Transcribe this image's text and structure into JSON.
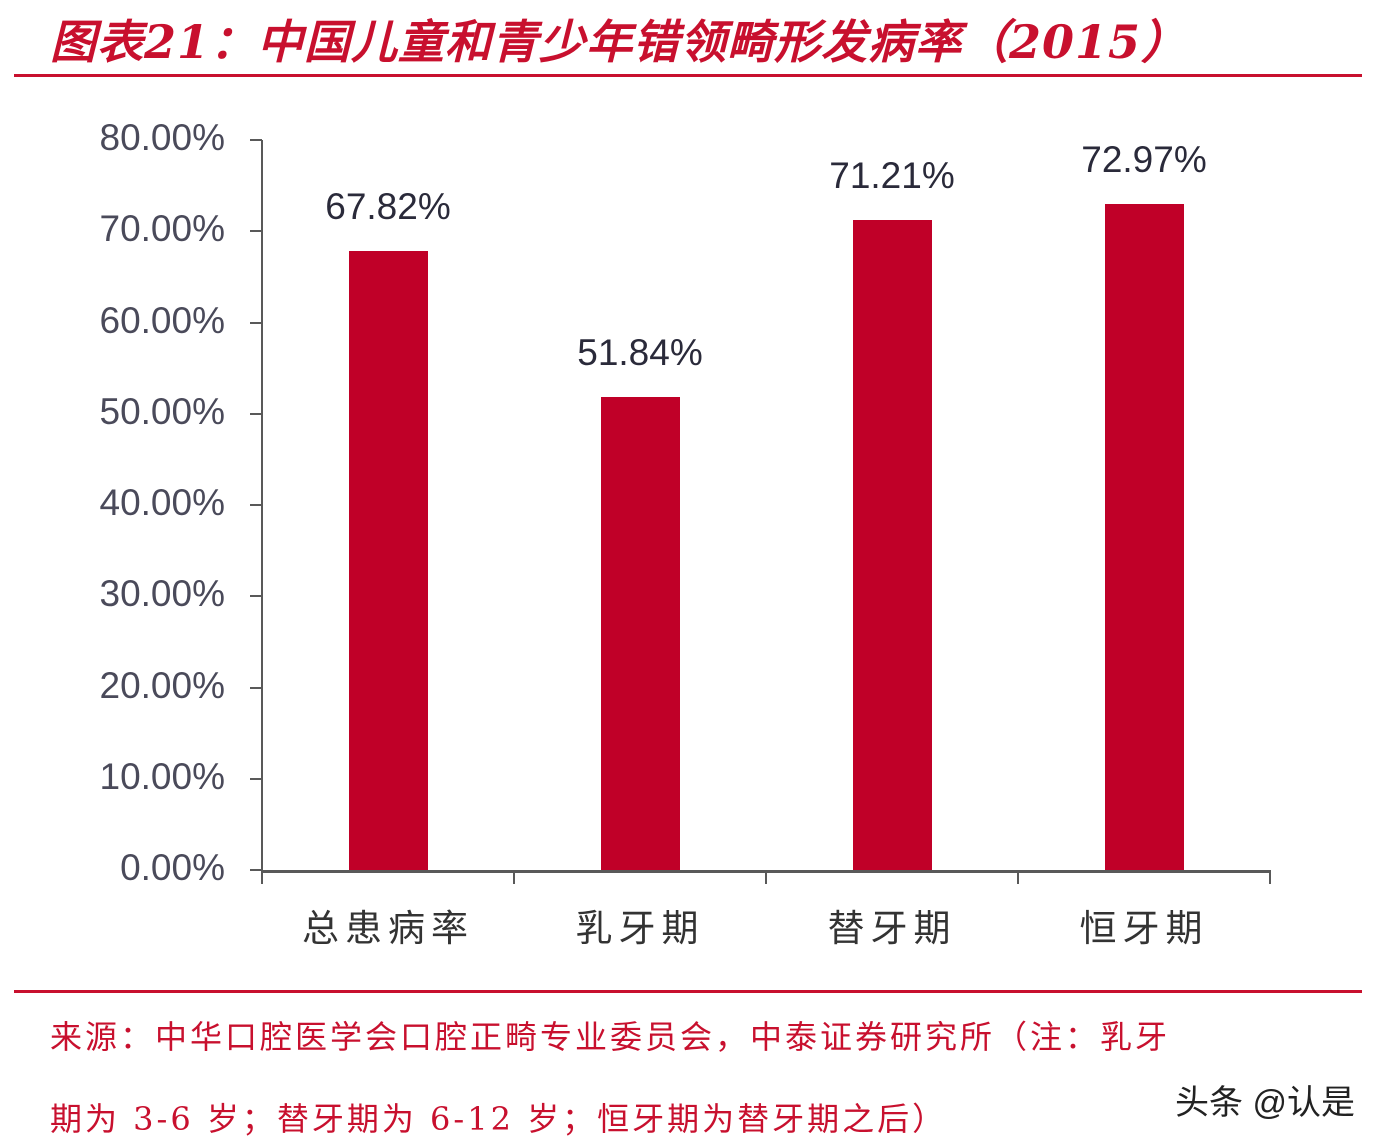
{
  "title": "图表21：中国儿童和青少年错领畸形发病率（2015）",
  "chart_data": {
    "type": "bar",
    "title": "中国儿童和青少年错领畸形发病率（2015）",
    "categories": [
      "总患病率",
      "乳牙期",
      "替牙期",
      "恒牙期"
    ],
    "values": [
      67.82,
      51.84,
      71.21,
      72.97
    ],
    "value_labels": [
      "67.82%",
      "51.84%",
      "71.21%",
      "72.97%"
    ],
    "xlabel": "",
    "ylabel": "",
    "ylim": [
      0,
      80
    ],
    "yticks": [
      "0.00%",
      "10.00%",
      "20.00%",
      "30.00%",
      "40.00%",
      "50.00%",
      "60.00%",
      "70.00%",
      "80.00%"
    ],
    "grid": false,
    "legend": null,
    "bar_color": "#c00028"
  },
  "source": {
    "line1": "来源：中华口腔医学会口腔正畸专业委员会，中泰证券研究所（注：乳牙",
    "line2": "期为 3-6 岁；替牙期为 6-12 岁；恒牙期为替牙期之后）"
  },
  "watermark": "头条 @认是",
  "colors": {
    "accent": "#c8102e",
    "bar": "#c00028",
    "axis": "#595959"
  }
}
